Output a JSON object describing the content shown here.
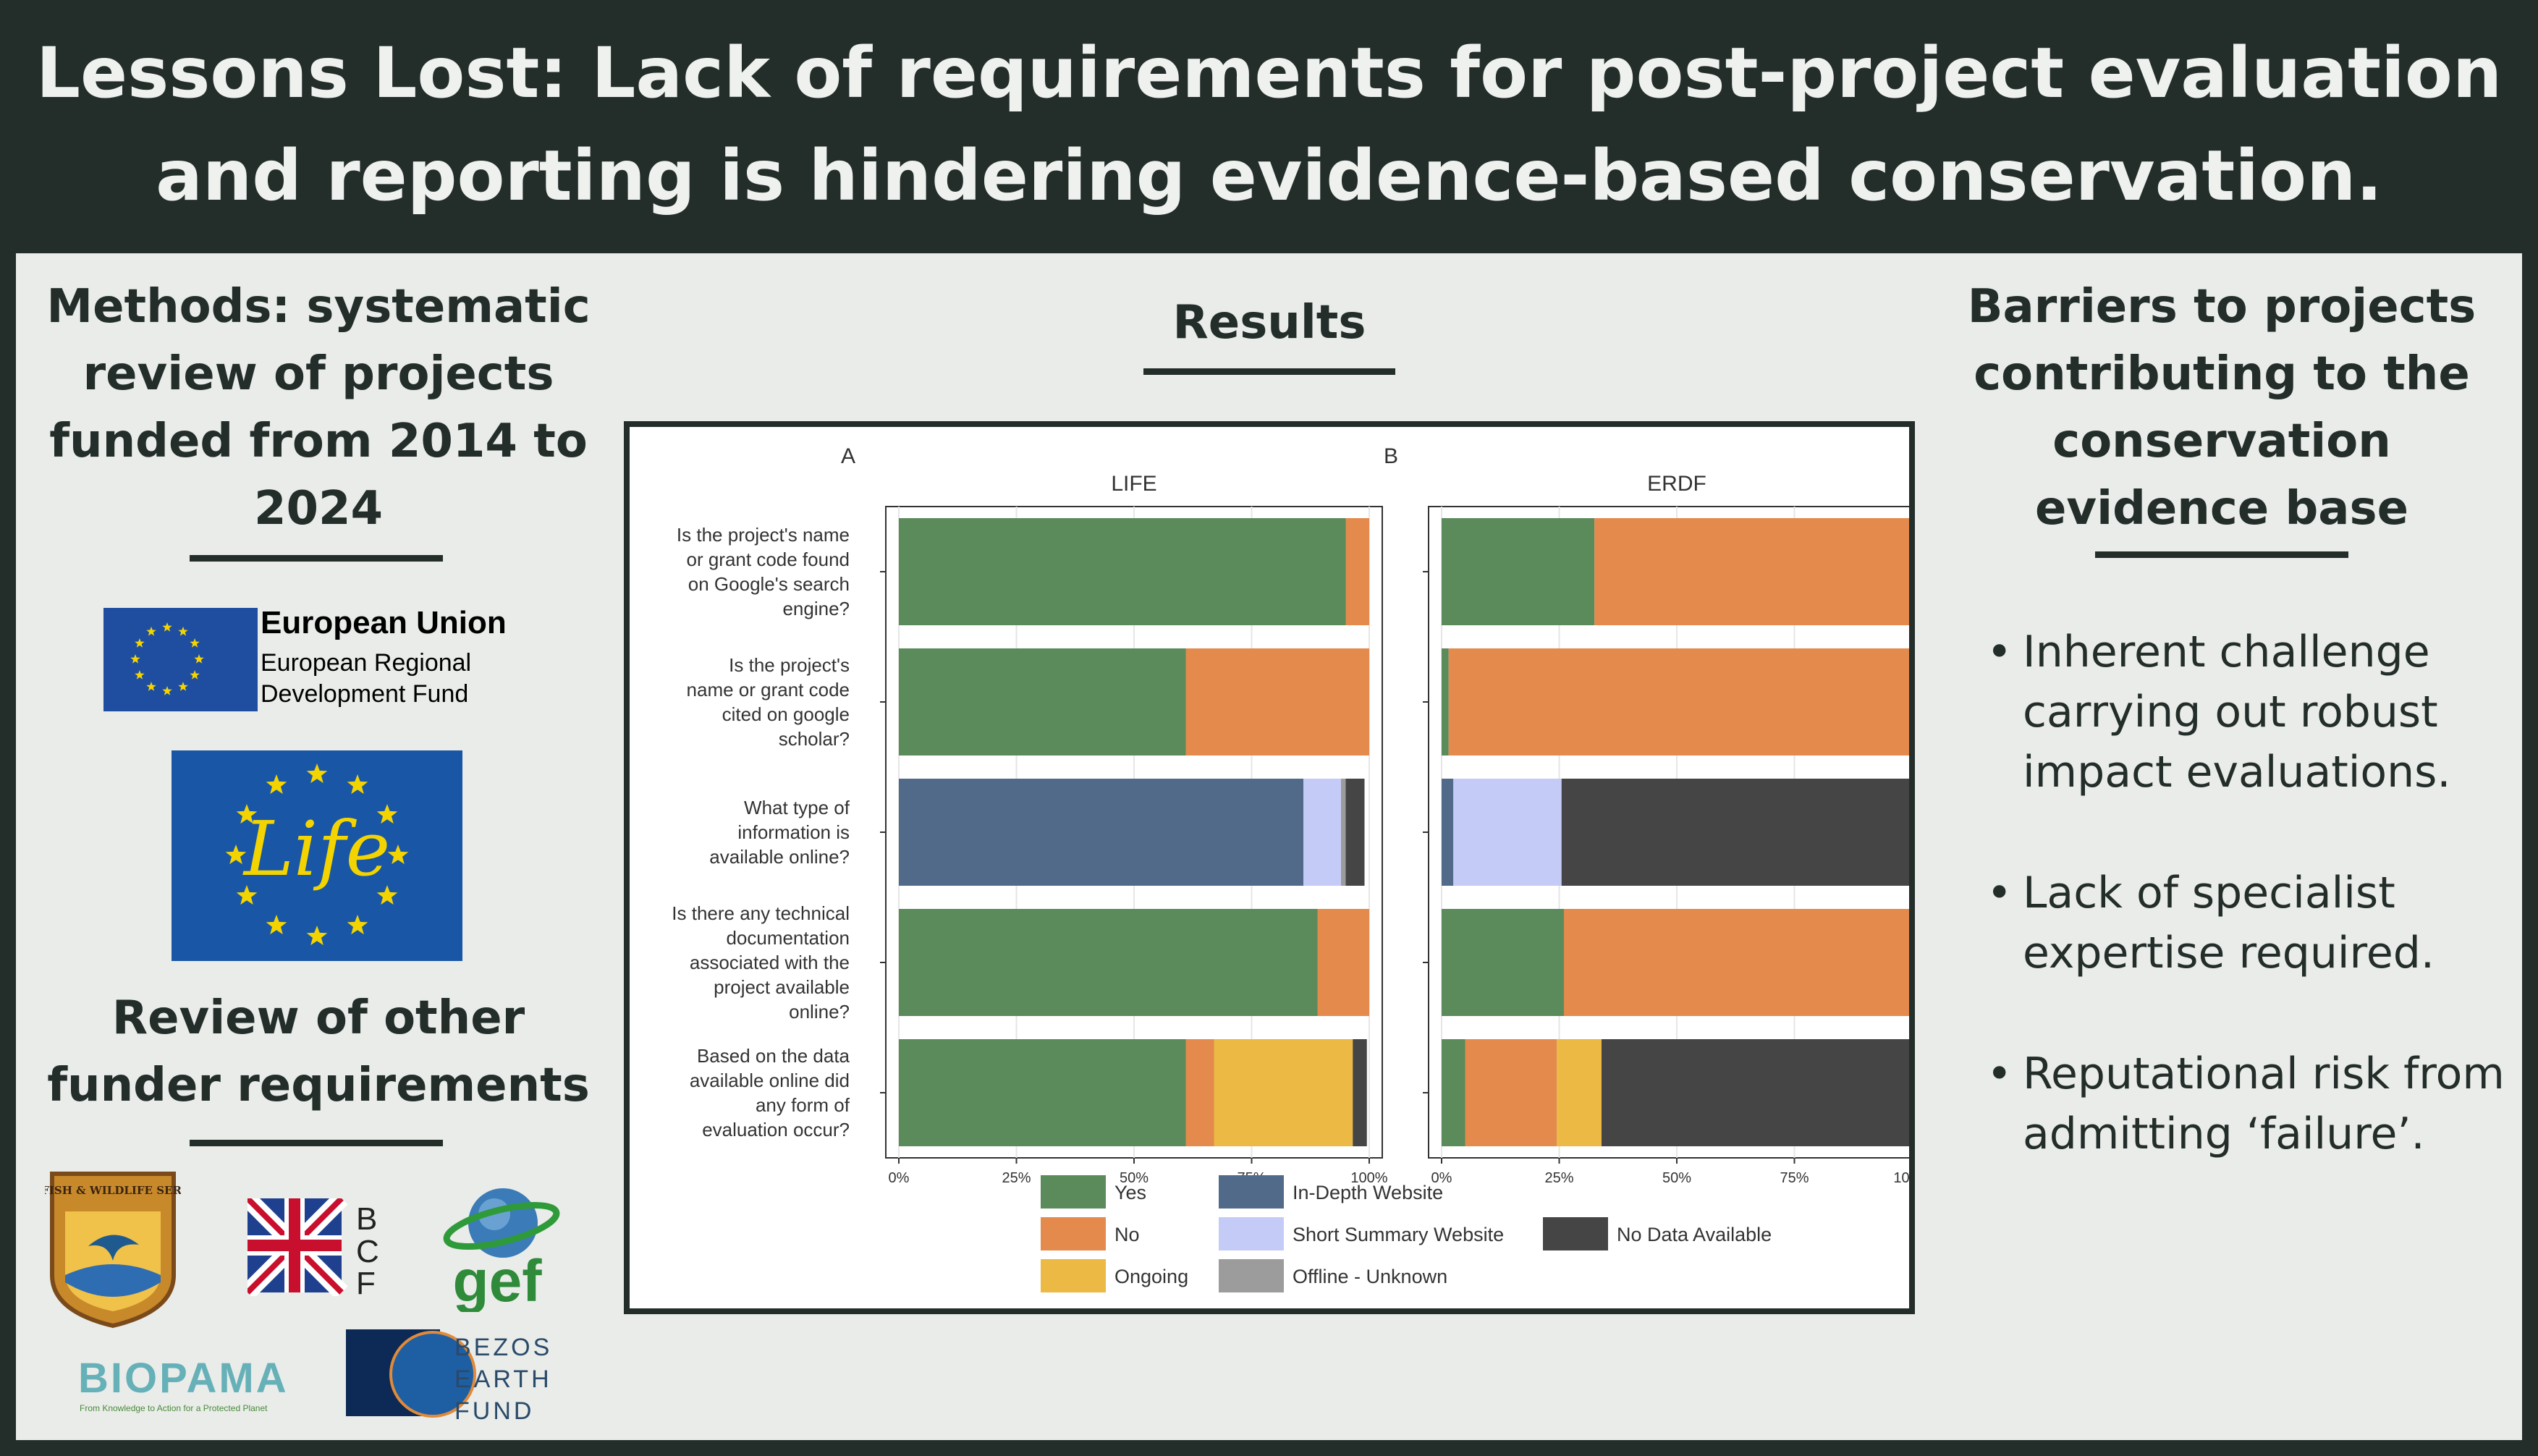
{
  "title": {
    "line1": "Lessons Lost: Lack of requirements for post-project evaluation",
    "line2": "and reporting is hindering evidence-based conservation."
  },
  "left": {
    "methods_lines": [
      "Methods: systematic",
      "review of projects",
      "funded from 2014 to",
      "2024"
    ],
    "eu_logo": {
      "title": "European Union",
      "line1": "European Regional",
      "line2": "Development Fund"
    },
    "life_logo_text": "Life",
    "review_lines": [
      "Review of other",
      "funder requirements"
    ],
    "funder_logos": {
      "usfws": "U.S. FISH & WILDLIFE SERVICE",
      "bcf": [
        "B",
        "C",
        "F"
      ],
      "gef": "gef",
      "biopama": "BIOPAMA",
      "biopama_tagline": "From Knowledge to Action for a Protected Planet",
      "bezos": [
        "BEZOS",
        "EARTH",
        "FUND"
      ]
    }
  },
  "results": {
    "heading": "Results"
  },
  "right": {
    "heading_lines": [
      "Barriers to projects",
      "contributing to the",
      "conservation",
      "evidence base"
    ],
    "bullets": [
      [
        "Inherent challenge",
        "carrying out robust",
        "impact evaluations."
      ],
      [
        "Lack of specialist",
        "expertise required."
      ],
      [
        "Reputational risk from",
        "admitting  ‘failure’."
      ]
    ],
    "bullet_symbol": "•"
  },
  "colors": {
    "Yes": "#5b8a5b",
    "No": "#e38a4c",
    "Ongoing": "#ebb944",
    "In-Depth Website": "#526a8a",
    "Short Summary Website": "#c5cbf7",
    "Offline - Unknown": "#9c9c9c",
    "No Data Available": "#454545",
    "dark": "#232d2a"
  },
  "chart_data": {
    "type": "bar",
    "orientation": "horizontal-stacked",
    "questions": [
      [
        "Is the project's name",
        "or grant code found",
        "on Google's search",
        "engine?"
      ],
      [
        "Is the project's",
        "name or grant code",
        "cited on google",
        "scholar?"
      ],
      [
        "What type of",
        "information is",
        "available online?"
      ],
      [
        "Is there any technical",
        "documentation",
        "associated with the",
        "project available",
        "online?"
      ],
      [
        "Based on the data",
        "available online did",
        "any form of",
        "evaluation occur?"
      ]
    ],
    "x_ticks": [
      "0%",
      "25%",
      "50%",
      "75%",
      "100%"
    ],
    "xlim": [
      0,
      100
    ],
    "legend": [
      [
        "Yes",
        "No",
        "Ongoing"
      ],
      [
        "In-Depth Website",
        "Short Summary Website",
        "Offline - Unknown"
      ],
      [
        "No Data Available"
      ]
    ],
    "panels": [
      {
        "tag": "A",
        "title": "LIFE",
        "bars": [
          [
            [
              "Yes",
              95
            ],
            [
              "No",
              5
            ]
          ],
          [
            [
              "Yes",
              61
            ],
            [
              "No",
              39
            ]
          ],
          [
            [
              "In-Depth Website",
              86
            ],
            [
              "Short Summary Website",
              8
            ],
            [
              "Offline - Unknown",
              1
            ],
            [
              "No Data Available",
              4
            ]
          ],
          [
            [
              "Yes",
              89
            ],
            [
              "No",
              11
            ]
          ],
          [
            [
              "Yes",
              61
            ],
            [
              "No",
              6
            ],
            [
              "Ongoing",
              29.5
            ],
            [
              "No Data Available",
              3
            ]
          ]
        ]
      },
      {
        "tag": "B",
        "title": "ERDF",
        "bars": [
          [
            [
              "Yes",
              32.5
            ],
            [
              "No",
              67.5
            ]
          ],
          [
            [
              "Yes",
              1.5
            ],
            [
              "No",
              98.5
            ]
          ],
          [
            [
              "In-Depth Website",
              2.5
            ],
            [
              "Short Summary Website",
              23
            ],
            [
              "No Data Available",
              74.5
            ]
          ],
          [
            [
              "Yes",
              26
            ],
            [
              "No",
              74
            ]
          ],
          [
            [
              "Yes",
              5
            ],
            [
              "No",
              19.5
            ],
            [
              "Ongoing",
              9.5
            ],
            [
              "No Data Available",
              66
            ]
          ]
        ]
      }
    ]
  }
}
